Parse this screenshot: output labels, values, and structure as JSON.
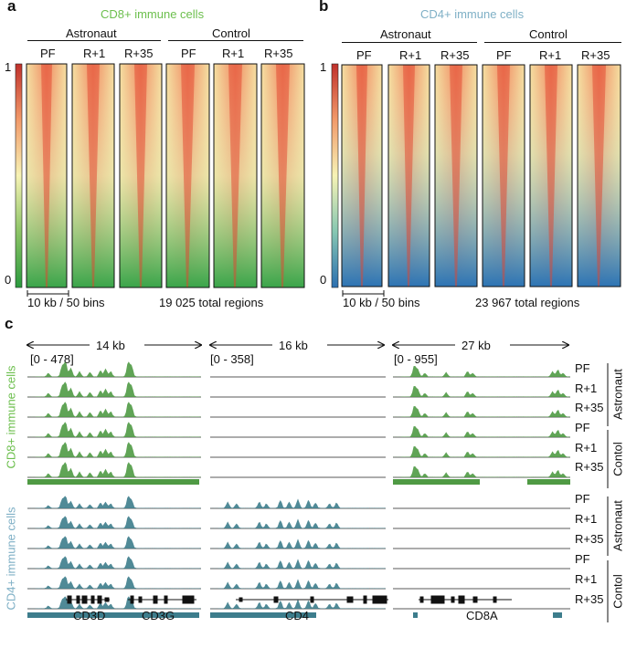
{
  "panel_a": {
    "letter": "a",
    "title": "CD8+ immune cells",
    "group1": "Astronaut",
    "group2": "Control",
    "columns": [
      "PF",
      "R+1",
      "R+35",
      "PF",
      "R+1",
      "R+35"
    ],
    "scale_max": "1",
    "scale_min": "0",
    "window_label": "10 kb / 50 bins",
    "regions_label": "19 025 total regions",
    "colors": {
      "low": "#2a9a3e",
      "mid": "#f7f3b5",
      "high": "#d9332b"
    }
  },
  "panel_b": {
    "letter": "b",
    "title": "CD4+ immune cells",
    "group1": "Astronaut",
    "group2": "Control",
    "columns": [
      "PF",
      "R+1",
      "R+35",
      "PF",
      "R+1",
      "R+35"
    ],
    "scale_max": "1",
    "scale_min": "0",
    "window_label": "10 kb / 50 bins",
    "regions_label": "23 967 total regions",
    "colors": {
      "low": "#2b6fb0",
      "mid": "#f7f3b5",
      "high": "#d9332b"
    }
  },
  "panel_c": {
    "letter": "c",
    "loci": [
      {
        "span": "14 kb",
        "range": "[0 - 478]",
        "genes": [
          "CD3D",
          "CD3G"
        ]
      },
      {
        "span": "16 kb",
        "range": "[0 - 358]",
        "genes": [
          "CD4"
        ]
      },
      {
        "span": "27 kb",
        "range": "[0 - 955]",
        "genes": [
          "CD8A"
        ]
      }
    ],
    "cd8_label": "CD8+ immune cells",
    "cd4_label": "CD4+ immune cells",
    "track_labels": [
      "PF",
      "R+1",
      "R+35",
      "PF",
      "R+1",
      "R+35"
    ],
    "group_astronaut": "Astronaut",
    "group_control": "Contol",
    "colors": {
      "cd8": "#4f9a44",
      "cd4": "#3d7d8c",
      "cd8_label": "#6cbf4d",
      "cd4_label": "#7fb0c6"
    }
  }
}
